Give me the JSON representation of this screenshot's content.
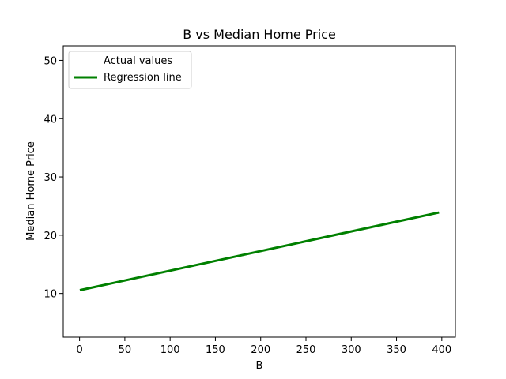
{
  "chart_data": {
    "type": "line",
    "title": "B vs Median Home Price",
    "xlabel": "B",
    "ylabel": "Median Home Price",
    "xlim": [
      -18,
      415
    ],
    "ylim": [
      2.5,
      52.5
    ],
    "xticks": [
      0,
      50,
      100,
      150,
      200,
      250,
      300,
      350,
      400
    ],
    "yticks": [
      10,
      20,
      30,
      40,
      50
    ],
    "grid": false,
    "legend_position": "top-left",
    "series": [
      {
        "name": "Actual values",
        "kind": "scatter",
        "color": "#ffffff",
        "x": [],
        "y": []
      },
      {
        "name": "Regression line",
        "kind": "line",
        "color": "#008000",
        "x": [
          0.32,
          396.9
        ],
        "y": [
          10.56,
          23.9
        ]
      }
    ]
  }
}
